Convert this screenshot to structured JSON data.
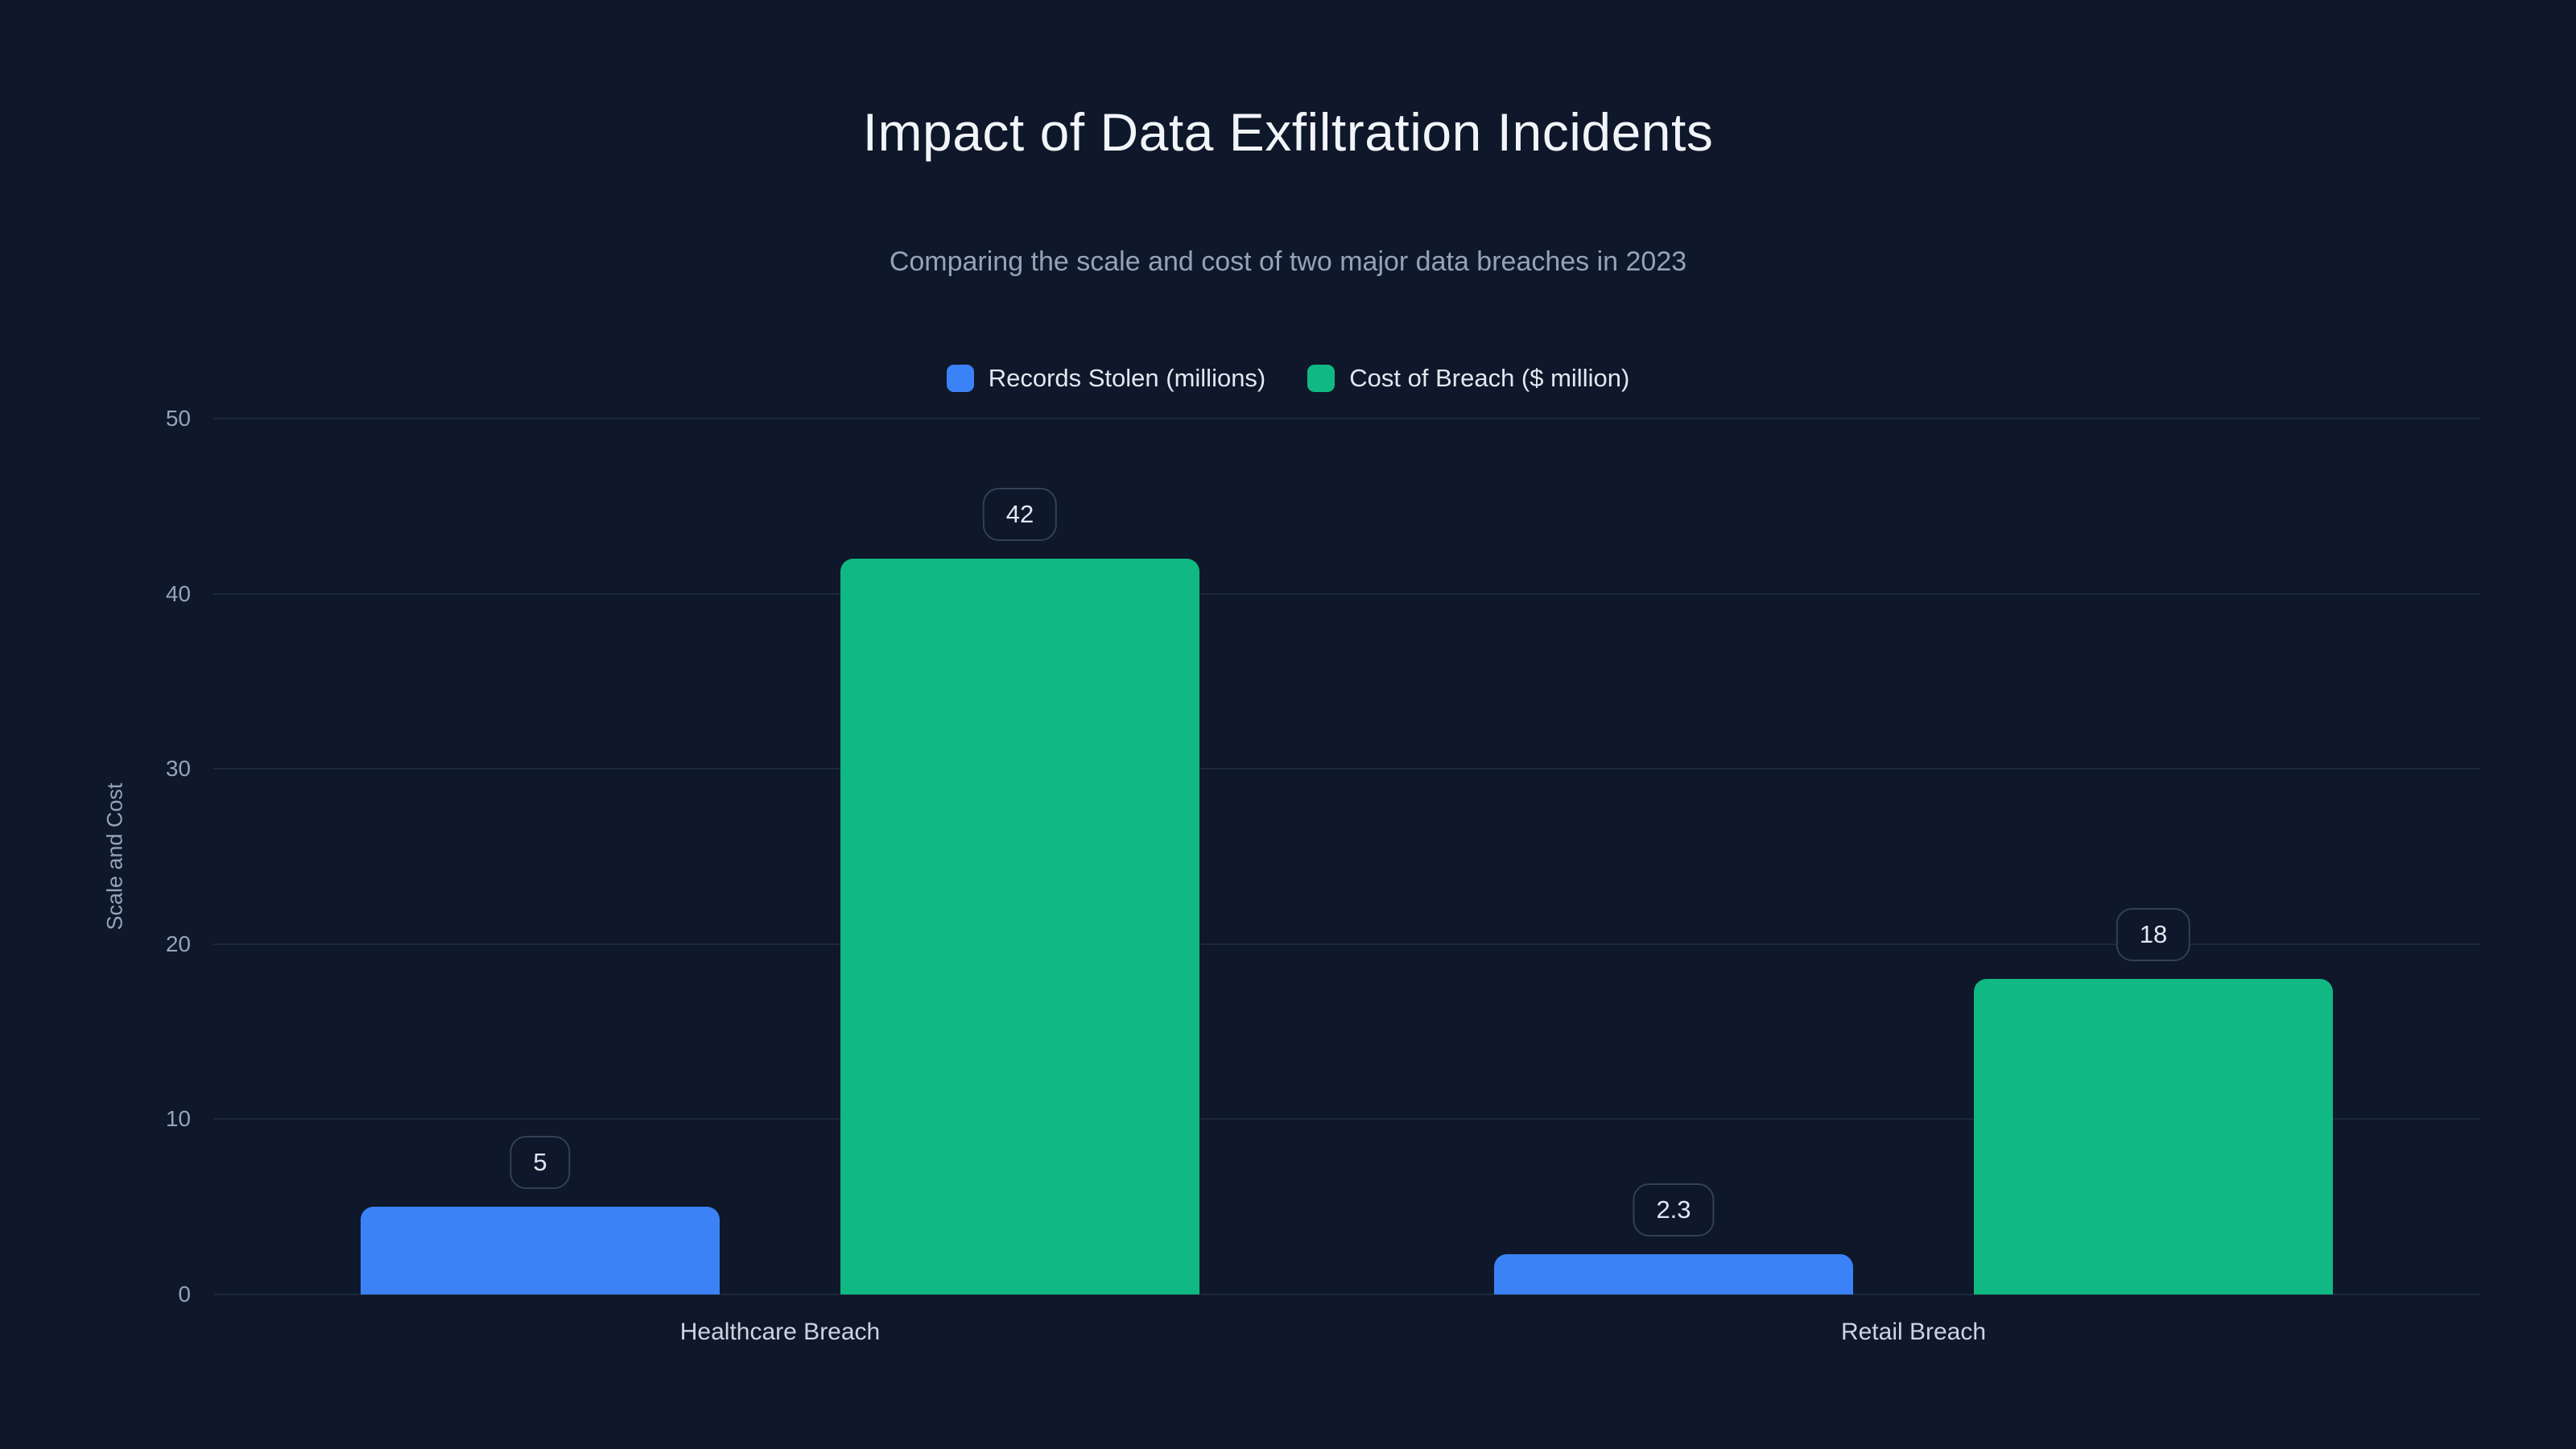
{
  "title": "Impact of Data Exfiltration Incidents",
  "subtitle": "Comparing the scale and cost of two major data breaches in 2023",
  "colors": {
    "background": "#0f172a",
    "records_series": "#3b82f6",
    "cost_series": "#10b981",
    "grid": "rgba(71,85,105,0.28)",
    "text_primary": "#f1f5f9",
    "text_muted": "#94a3b8"
  },
  "chart_data": {
    "type": "bar",
    "title": "Impact of Data Exfiltration Incidents",
    "subtitle": "Comparing the scale and cost of two major data breaches in 2023",
    "categories": [
      "Healthcare Breach",
      "Retail Breach"
    ],
    "series": [
      {
        "name": "Records Stolen (millions)",
        "color": "#3b82f6",
        "values": [
          5,
          2.3
        ],
        "labels": [
          "5",
          "2.3"
        ]
      },
      {
        "name": "Cost of Breach ($ million)",
        "color": "#10b981",
        "values": [
          42,
          18
        ],
        "labels": [
          "42",
          "18"
        ]
      }
    ],
    "xlabel": "",
    "ylabel": "Scale and Cost",
    "ylim": [
      0,
      50
    ],
    "yticks": [
      0,
      10,
      20,
      30,
      40,
      50
    ],
    "grid": true,
    "legend_position": "top"
  }
}
